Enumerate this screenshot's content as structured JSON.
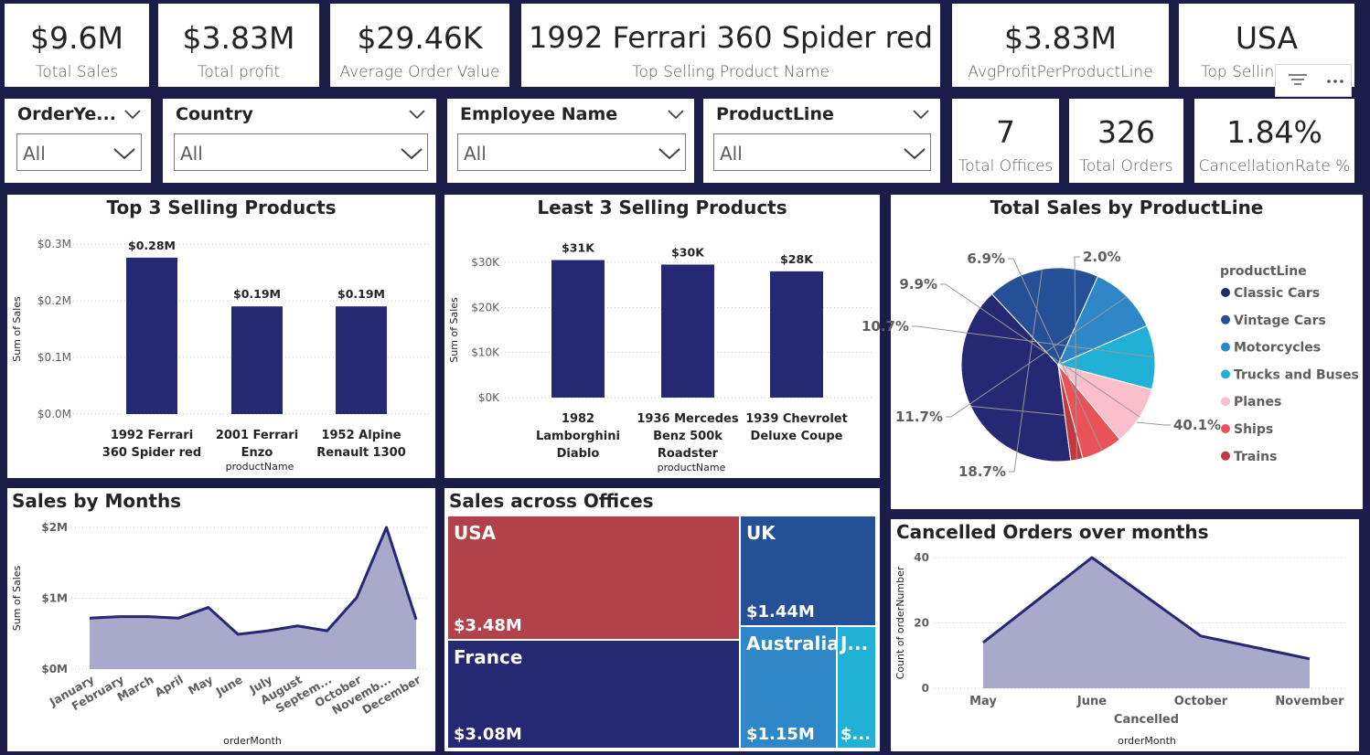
{
  "kpis": [
    {
      "value": "$9.6M",
      "label": "Total Sales"
    },
    {
      "value": "$3.83M",
      "label": "Total profit"
    },
    {
      "value": "$29.46K",
      "label": "Average Order Value"
    },
    {
      "value": "1992 Ferrari 360 Spider red",
      "label": "Top Selling Product Name"
    },
    {
      "value": "$3.83M",
      "label": "AvgProfitPerProductLine"
    },
    {
      "value": "USA",
      "label": "Top Selling ic"
    }
  ],
  "kpis2": [
    {
      "value": "7",
      "label": "Total Offices"
    },
    {
      "value": "326",
      "label": "Total Orders"
    },
    {
      "value": "1.84%",
      "label": "CancellationRate %"
    }
  ],
  "slicers": [
    {
      "title": "OrderYe...",
      "value": "All"
    },
    {
      "title": "Country",
      "value": "All"
    },
    {
      "title": "Employee Name",
      "value": "All"
    },
    {
      "title": "ProductLine",
      "value": "All"
    }
  ],
  "colors": {
    "navy": "#252872",
    "area": "#a9a9cc",
    "usa": "#b2414a",
    "uk": "#254f96",
    "france": "#252872",
    "australia": "#2e88c8",
    "japan": "#22b1d6"
  },
  "chart_data": [
    {
      "type": "bar",
      "title": "Top 3 Selling Products",
      "xlabel": "productName",
      "ylabel": "Sum of Sales",
      "categories": [
        "1992 Ferrari 360 Spider red",
        "2001 Ferrari Enzo",
        "1952 Alpine Renault 1300"
      ],
      "category_lines": [
        [
          "1992 Ferrari",
          "360 Spider red"
        ],
        [
          "2001 Ferrari",
          "Enzo"
        ],
        [
          "1952 Alpine",
          "Renault 1300"
        ]
      ],
      "values": [
        276000,
        190000,
        190000
      ],
      "data_labels": [
        "$0.28M",
        "$0.19M",
        "$0.19M"
      ],
      "ylim": [
        0,
        300000
      ],
      "yticks": [
        0,
        100000,
        200000,
        300000
      ],
      "ytick_labels": [
        "$0.0M",
        "$0.1M",
        "$0.2M",
        "$0.3M"
      ]
    },
    {
      "type": "bar",
      "title": "Least 3 Selling Products",
      "xlabel": "productName",
      "ylabel": "Sum of Sales",
      "categories": [
        "1982 Lamborghini Diablo",
        "1936 Mercedes Benz 500k Roadster",
        "1939 Chevrolet Deluxe Coupe"
      ],
      "category_lines": [
        [
          "1982",
          "Lamborghini",
          "Diablo"
        ],
        [
          "1936 Mercedes",
          "Benz 500k",
          "Roadster"
        ],
        [
          "1939 Chevrolet",
          "Deluxe Coupe"
        ]
      ],
      "values": [
        30500,
        29500,
        28000
      ],
      "data_labels": [
        "$31K",
        "$30K",
        "$28K"
      ],
      "ylim": [
        0,
        30000
      ],
      "yticks": [
        0,
        10000,
        20000,
        30000
      ],
      "ytick_labels": [
        "$0K",
        "$10K",
        "$20K",
        "$30K"
      ]
    },
    {
      "type": "pie",
      "title": "Total Sales by ProductLine",
      "legend_title": "productLine",
      "legend_position": "right",
      "slices": [
        {
          "name": "Classic Cars",
          "value": 40.1,
          "label": "40.1%",
          "color": "#252872"
        },
        {
          "name": "Vintage Cars",
          "value": 18.7,
          "label": "18.7%",
          "color": "#254f96"
        },
        {
          "name": "Motorcycles",
          "value": 11.7,
          "label": "11.7%",
          "color": "#2e88c8"
        },
        {
          "name": "Trucks and Buses",
          "value": 10.7,
          "label": "10.7%",
          "color": "#22b1d6"
        },
        {
          "name": "Planes",
          "value": 9.9,
          "label": "9.9%",
          "color": "#fbbfcb"
        },
        {
          "name": "Ships",
          "value": 6.9,
          "label": "6.9%",
          "color": "#e95257"
        },
        {
          "name": "Trains",
          "value": 2.0,
          "label": "2.0%",
          "color": "#c0393e"
        }
      ]
    },
    {
      "type": "area",
      "title": "Sales by Months",
      "xlabel": "orderMonth",
      "ylabel": "Sum of Sales",
      "x": [
        "January",
        "February",
        "March",
        "April",
        "May",
        "June",
        "July",
        "August",
        "September",
        "October",
        "November",
        "December"
      ],
      "x_tick_labels": [
        "January",
        "February",
        "March",
        "April",
        "May",
        "June",
        "July",
        "August",
        "Septem...",
        "October",
        "Novemb...",
        "December"
      ],
      "values": [
        720000,
        740000,
        740000,
        720000,
        870000,
        490000,
        540000,
        610000,
        540000,
        1010000,
        2000000,
        700000
      ],
      "ylim": [
        0,
        2000000
      ],
      "yticks": [
        0,
        1000000,
        2000000
      ],
      "ytick_labels": [
        "$0M",
        "$1M",
        "$2M"
      ]
    },
    {
      "type": "treemap",
      "title": "Sales across Offices",
      "items": [
        {
          "name": "USA",
          "label": "$3.48M",
          "value": 3.48
        },
        {
          "name": "France",
          "label": "$3.08M",
          "value": 3.08
        },
        {
          "name": "UK",
          "label": "$1.44M",
          "value": 1.44
        },
        {
          "name": "Australia",
          "label": "$1.15M",
          "value": 1.15
        },
        {
          "name": "J...",
          "label": "$...",
          "value": 0.45
        }
      ]
    },
    {
      "type": "area",
      "title": "Cancelled Orders over months",
      "xlabel": "orderMonth",
      "x_group_label": "Cancelled",
      "ylabel": "Count of orderNumber",
      "x": [
        "May",
        "June",
        "October",
        "November"
      ],
      "values": [
        14,
        40,
        16,
        9
      ],
      "ylim": [
        0,
        40
      ],
      "yticks": [
        0,
        20,
        40
      ],
      "ytick_labels": [
        "0",
        "20",
        "40"
      ]
    }
  ]
}
